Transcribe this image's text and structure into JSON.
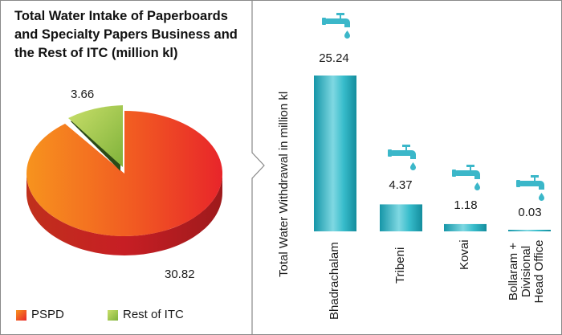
{
  "pie_chart": {
    "title": "Total Water Intake of Paperboards and Specialty Papers Business and the Rest of ITC (million kl)",
    "colors": {
      "PSPD": "#f0501e",
      "Rest of ITC": "#9ac435"
    }
  },
  "bar_chart": {
    "ylabel": "Total Water Withdrawal in million kl",
    "bar_color": "#2fb8c8",
    "icon": "water-tap-icon"
  },
  "chart_data": [
    {
      "type": "pie",
      "title": "Total Water Intake of Paperboards and Specialty Papers Business and the Rest of ITC (million kl)",
      "labels": [
        "PSPD",
        "Rest of ITC"
      ],
      "values": [
        30.82,
        3.66
      ],
      "value_labels": [
        "30.82",
        "3.66"
      ],
      "legend": [
        "PSPD",
        "Rest of ITC"
      ],
      "legend_position": "bottom"
    },
    {
      "type": "bar",
      "categories": [
        "Bhadrachalam",
        "Tribeni",
        "Kovai",
        "Bollaram + Divisional Head Office"
      ],
      "category_lines": [
        [
          "Bhadrachalam"
        ],
        [
          "Tribeni"
        ],
        [
          "Kovai"
        ],
        [
          "Bollaram +",
          "Divisional",
          "Head Office"
        ]
      ],
      "values": [
        25.24,
        4.37,
        1.18,
        0.03
      ],
      "value_labels": [
        "25.24",
        "4.37",
        "1.18",
        "0.03"
      ],
      "ylabel": "Total Water Withdrawal in million kl",
      "xlabel": "",
      "ylim": [
        0,
        25.24
      ],
      "grid": false
    }
  ]
}
